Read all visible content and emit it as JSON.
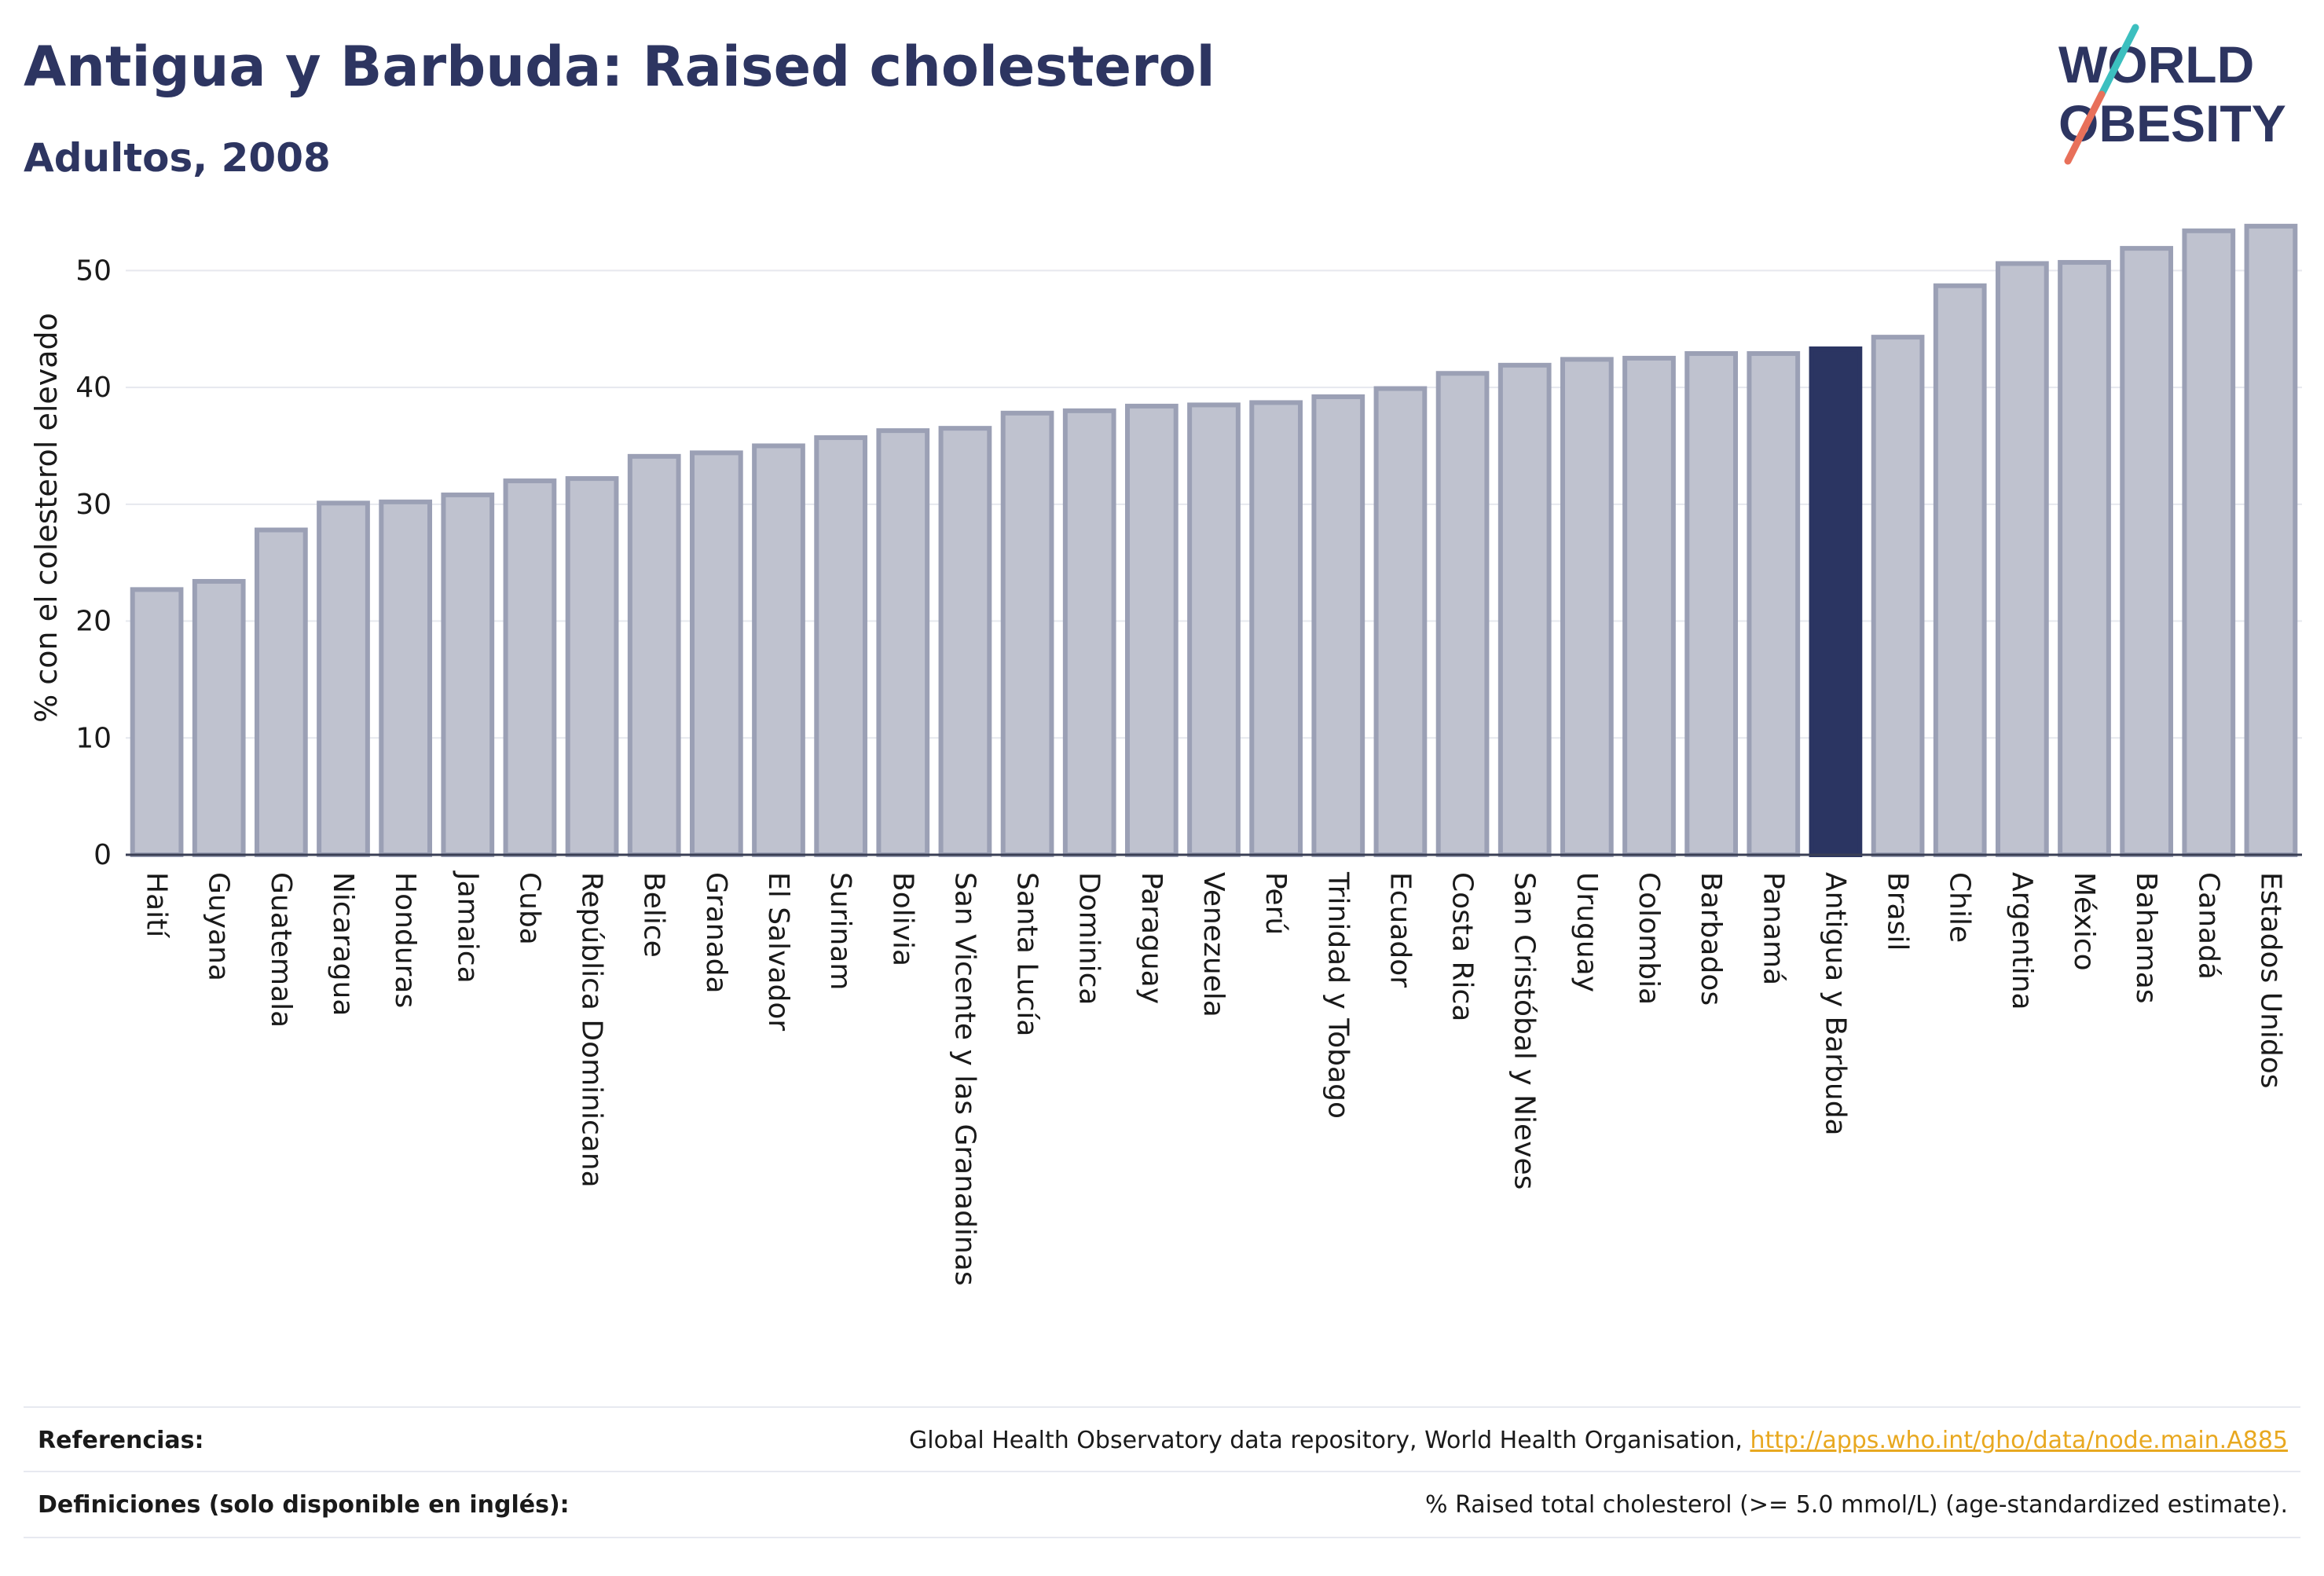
{
  "title": "Antigua y Barbuda: Raised cholesterol",
  "subtitle": "Adultos, 2008",
  "logo": {
    "line1": "WORLD",
    "line2": "OBESITY"
  },
  "colors": {
    "bar": "#bfc2cf",
    "bar_edge": "#9ba0b5",
    "highlight": "#2b3562",
    "grid": "#e6e8ee",
    "text": "#2d3561",
    "link": "#e8a820"
  },
  "chart_data": {
    "type": "bar",
    "title": "Antigua y Barbuda: Raised cholesterol",
    "ylabel": "% con el colesterol elevado",
    "xlabel": "",
    "ylim": [
      0,
      55
    ],
    "yticks": [
      0,
      10,
      20,
      30,
      40,
      50
    ],
    "grid": true,
    "highlight": "Antigua y Barbuda",
    "categories": [
      "Haití",
      "Guyana",
      "Guatemala",
      "Nicaragua",
      "Honduras",
      "Jamaica",
      "Cuba",
      "República Dominicana",
      "Belice",
      "Granada",
      "El Salvador",
      "Surinam",
      "Bolivia",
      "San Vicente y las Granadinas",
      "Santa Lucía",
      "Dominica",
      "Paraguay",
      "Venezuela",
      "Perú",
      "Trinidad y Tobago",
      "Ecuador",
      "Costa Rica",
      "San Cristóbal y Nieves",
      "Uruguay",
      "Colombia",
      "Barbados",
      "Panamá",
      "Antigua y Barbuda",
      "Brasil",
      "Chile",
      "Argentina",
      "México",
      "Bahamas",
      "Canadá",
      "Estados Unidos"
    ],
    "values": [
      22.7,
      23.4,
      27.8,
      30.1,
      30.2,
      30.8,
      32.0,
      32.2,
      34.1,
      34.4,
      35.0,
      35.7,
      36.3,
      36.5,
      37.8,
      38.0,
      38.4,
      38.5,
      38.7,
      39.2,
      39.9,
      41.2,
      41.9,
      42.4,
      42.5,
      42.9,
      42.9,
      43.3,
      44.3,
      48.7,
      50.6,
      50.7,
      51.9,
      53.4,
      53.8
    ]
  },
  "footer": {
    "references_label": "Referencias:",
    "references_text": "Global Health Observatory data repository, World Health Organisation, ",
    "references_link": "http://apps.who.int/gho/data/node.main.A885",
    "definitions_label": "Definiciones (solo disponible en inglés):",
    "definitions_text": "% Raised total cholesterol (>= 5.0 mmol/L) (age-standardized estimate)."
  }
}
